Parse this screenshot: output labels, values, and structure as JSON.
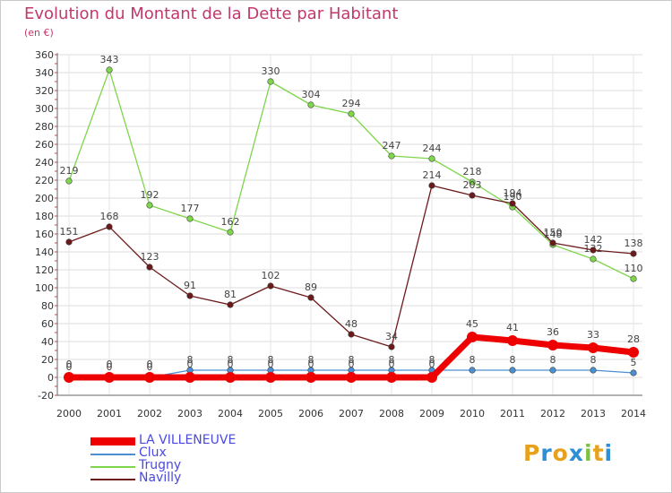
{
  "chart_data": {
    "type": "line",
    "title": "Evolution du Montant de la Dette par Habitant",
    "subtitle": "(en €)",
    "x": [
      "2000",
      "2001",
      "2002",
      "2003",
      "2004",
      "2005",
      "2006",
      "2007",
      "2008",
      "2009",
      "2010",
      "2011",
      "2012",
      "2013",
      "2014"
    ],
    "ylim": [
      -20,
      360
    ],
    "yticks": [
      -20,
      0,
      20,
      40,
      60,
      80,
      100,
      120,
      140,
      160,
      180,
      200,
      220,
      240,
      260,
      280,
      300,
      320,
      340,
      360
    ],
    "grid": true,
    "legend_position": "bottom-left",
    "series": [
      {
        "name": "Clux",
        "color": "#4b8fd0",
        "values": [
          0,
          0,
          0,
          8,
          8,
          8,
          8,
          8,
          8,
          8,
          8,
          8,
          8,
          8,
          5
        ]
      },
      {
        "name": "Trugny",
        "color": "#7ed64a",
        "values": [
          219,
          343,
          192,
          177,
          162,
          330,
          304,
          294,
          247,
          244,
          218,
          190,
          148,
          132,
          110
        ]
      },
      {
        "name": "Navilly",
        "color": "#6b1a1a",
        "values": [
          151,
          168,
          123,
          91,
          81,
          102,
          89,
          48,
          34,
          214,
          203,
          194,
          150,
          142,
          138
        ]
      },
      {
        "name": "LA VILLENEUVE",
        "color": "#ee0000",
        "highlight": true,
        "values": [
          0,
          0,
          0,
          0,
          0,
          0,
          0,
          0,
          0,
          0,
          45,
          41,
          36,
          33,
          28
        ]
      }
    ],
    "legend_order": [
      "LA VILLENEUVE",
      "Clux",
      "Trugny",
      "Navilly"
    ]
  },
  "brand": {
    "name": "Proxiti",
    "letters": [
      {
        "ch": "P",
        "color": "#e8a11c"
      },
      {
        "ch": "r",
        "color": "#2f8fd4"
      },
      {
        "ch": "o",
        "color": "#e8a11c"
      },
      {
        "ch": "x",
        "color": "#2f8fd4"
      },
      {
        "ch": "i",
        "color": "#7cc242"
      },
      {
        "ch": "t",
        "color": "#e8a11c"
      },
      {
        "ch": "i",
        "color": "#2f8fd4"
      }
    ]
  }
}
